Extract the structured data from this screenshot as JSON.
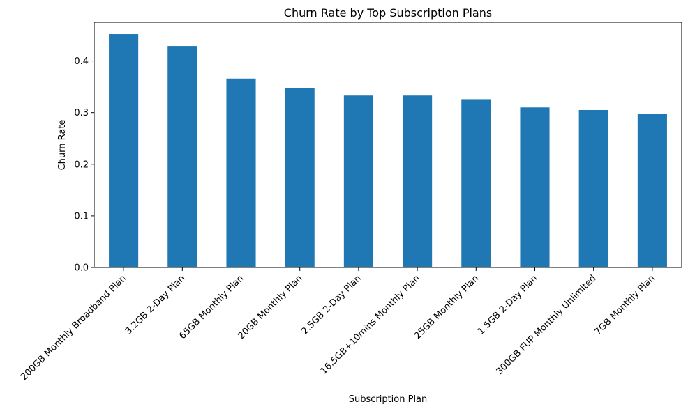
{
  "chart_data": {
    "type": "bar",
    "title": "Churn Rate by Top Subscription Plans",
    "xlabel": "Subscription Plan",
    "ylabel": "Churn Rate",
    "categories": [
      "200GB Monthly Broadband Plan",
      "3.2GB 2-Day Plan",
      "65GB Monthly Plan",
      "20GB Monthly Plan",
      "2.5GB 2-Day Plan",
      "16.5GB+10mins Monthly Plan",
      "25GB Monthly Plan",
      "1.5GB 2-Day Plan",
      "300GB FUP Monthly Unlimited",
      "7GB Monthly Plan"
    ],
    "values": [
      0.452,
      0.429,
      0.366,
      0.348,
      0.333,
      0.333,
      0.326,
      0.31,
      0.305,
      0.297
    ],
    "ylim": [
      0,
      0.475
    ],
    "yticks": [
      "0.0",
      "0.1",
      "0.2",
      "0.3",
      "0.4"
    ],
    "grid": false,
    "bar_color": "#1f77b4"
  }
}
